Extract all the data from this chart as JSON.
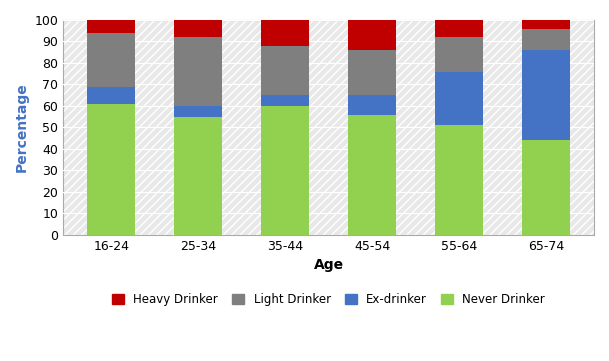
{
  "categories": [
    "16-24",
    "25-34",
    "35-44",
    "45-54",
    "55-64",
    "65-74"
  ],
  "never_drinker": [
    61,
    55,
    60,
    56,
    51,
    44
  ],
  "ex_drinker": [
    8,
    5,
    5,
    9,
    25,
    42
  ],
  "light_drinker": [
    25,
    32,
    23,
    21,
    16,
    10
  ],
  "heavy_drinker": [
    6,
    8,
    12,
    14,
    8,
    4
  ],
  "colors": {
    "never_drinker": "#92d050",
    "ex_drinker": "#4472c4",
    "light_drinker": "#7f7f7f",
    "heavy_drinker": "#c00000"
  },
  "labels": {
    "never_drinker": "Never Drinker",
    "ex_drinker": "Ex-drinker",
    "light_drinker": "Light Drinker",
    "heavy_drinker": "Heavy Drinker"
  },
  "xlabel": "Age",
  "ylabel": "Percentage",
  "ylim": [
    0,
    100
  ],
  "yticks": [
    0,
    10,
    20,
    30,
    40,
    50,
    60,
    70,
    80,
    90,
    100
  ],
  "background_color": "#d9d9d9",
  "bar_width": 0.55,
  "ylabel_color": "#4472c4",
  "xlabel_color": "#000000"
}
